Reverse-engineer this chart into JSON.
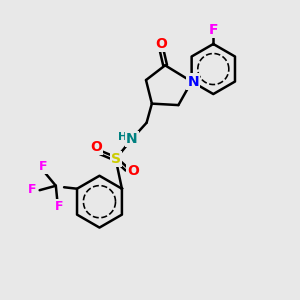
{
  "background_color": "#e8e8e8",
  "bond_color": "#000000",
  "bond_width": 1.8,
  "atom_colors": {
    "O": "#ff0000",
    "N_blue": "#0000ff",
    "N_teal": "#008080",
    "F": "#ff00ff",
    "S": "#cccc00",
    "H": "#008080"
  },
  "font_size_atom": 10,
  "font_size_small": 8
}
